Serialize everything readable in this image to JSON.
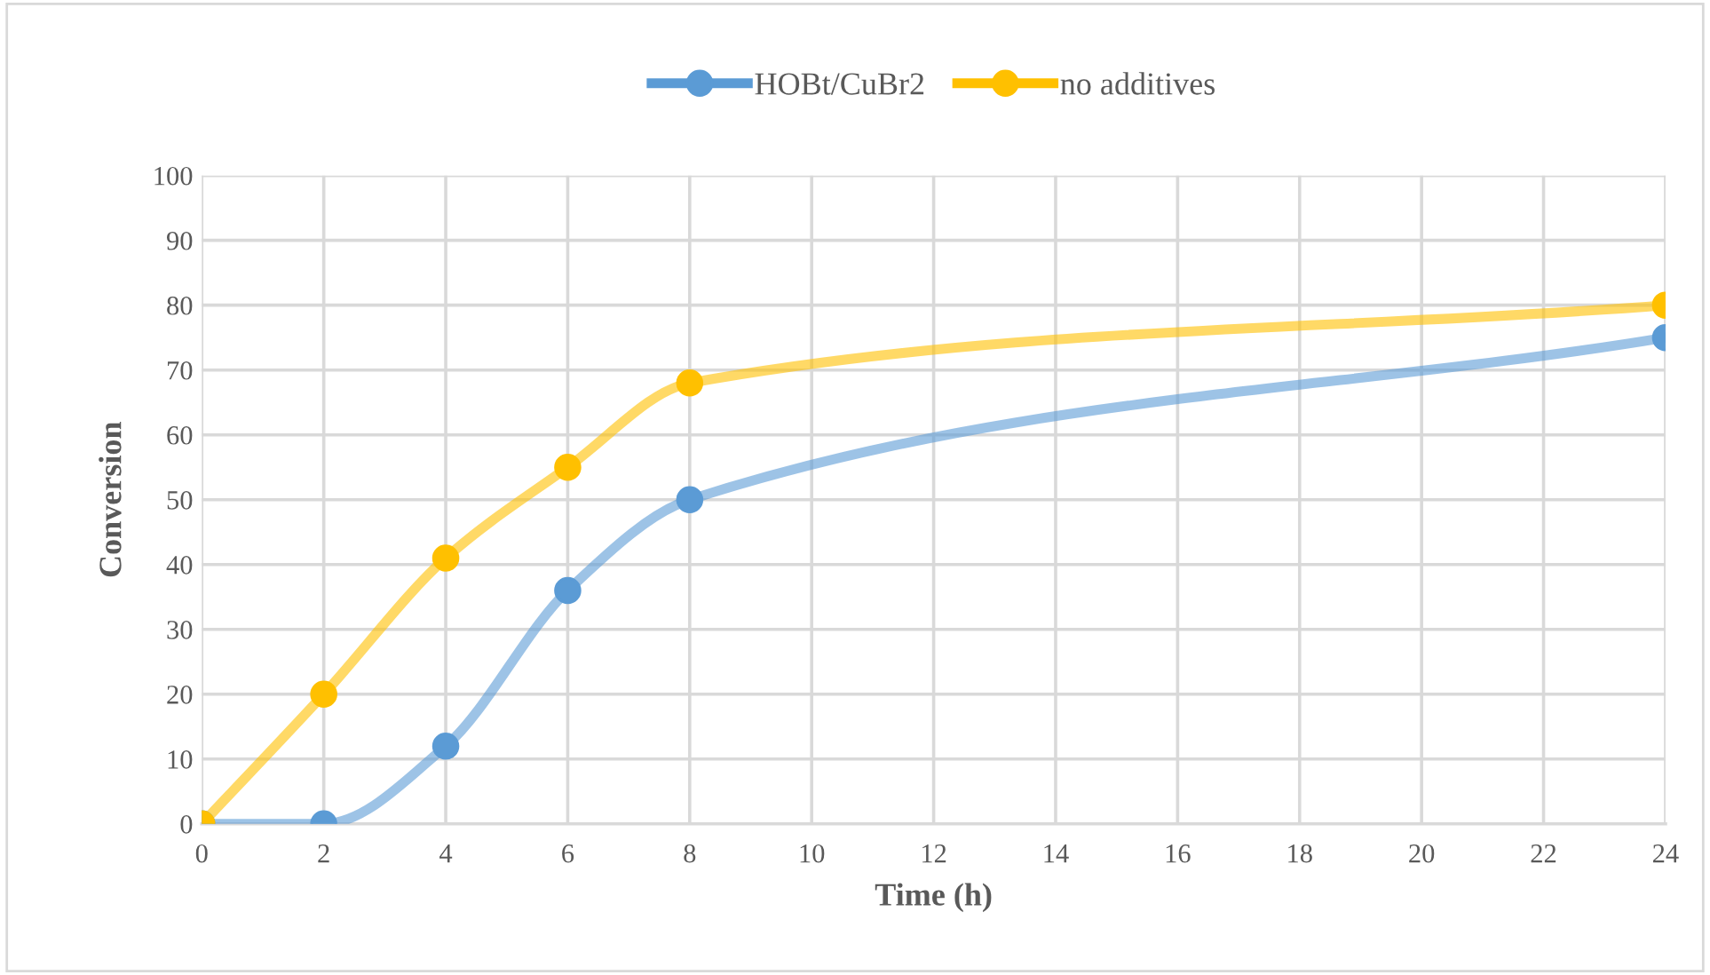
{
  "chart_data": {
    "type": "line",
    "xlabel": "Time (h)",
    "ylabel": "Conversion",
    "x": [
      0,
      2,
      4,
      6,
      8,
      24
    ],
    "series": [
      {
        "name": "HOBt/CuBr2",
        "color": "#5b9bd5",
        "values": [
          0,
          0,
          12,
          36,
          50,
          75
        ]
      },
      {
        "name": "no additives",
        "color": "#ffc000",
        "values": [
          0,
          20,
          41,
          55,
          68,
          80
        ]
      }
    ],
    "xlim": [
      0,
      24
    ],
    "xticks": [
      0,
      2,
      4,
      6,
      8,
      10,
      12,
      14,
      16,
      18,
      20,
      22,
      24
    ],
    "ylim": [
      0,
      100
    ],
    "yticks": [
      0,
      10,
      20,
      30,
      40,
      50,
      60,
      70,
      80,
      90,
      100
    ],
    "grid": true,
    "legend": "top",
    "marker": "circle",
    "line_style": "solid"
  }
}
